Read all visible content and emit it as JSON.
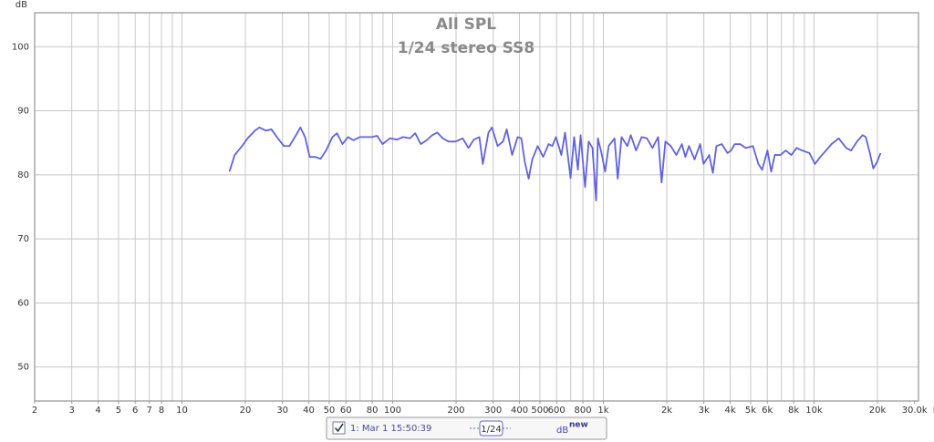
{
  "chart_data": {
    "type": "line",
    "title": "All SPL",
    "subtitle": "1/24 stereo SS8",
    "y_label": "dB",
    "x_unit": "Hz",
    "log_x": true,
    "grid": true,
    "xlim": [
      2,
      30000
    ],
    "ylim": [
      44.7,
      105.3
    ],
    "yticks": [
      50,
      60,
      70,
      80,
      90,
      100
    ],
    "xticks": [
      2,
      3,
      4,
      5,
      6,
      7,
      8,
      10,
      20,
      30,
      40,
      50,
      60,
      80,
      100,
      200,
      300,
      400,
      500,
      600,
      800,
      {
        "value": 1000,
        "label": "1k"
      },
      {
        "value": 2000,
        "label": "2k"
      },
      {
        "value": 3000,
        "label": "3k"
      },
      {
        "value": 4000,
        "label": "4k"
      },
      {
        "value": 5000,
        "label": "5k"
      },
      {
        "value": 6000,
        "label": "6k"
      },
      {
        "value": 8000,
        "label": "8k"
      },
      {
        "value": 10000,
        "label": "10k"
      },
      {
        "value": 20000,
        "label": "20k"
      },
      {
        "value": 30000,
        "label": "30.0k"
      }
    ],
    "xgrid": [
      2,
      3,
      4,
      5,
      6,
      7,
      8,
      9,
      10,
      20,
      30,
      40,
      50,
      60,
      70,
      80,
      90,
      100,
      200,
      300,
      400,
      500,
      600,
      700,
      800,
      900,
      1000,
      2000,
      3000,
      4000,
      5000,
      6000,
      7000,
      8000,
      9000,
      10000,
      20000
    ],
    "x": [
      16.8,
      17.8,
      19.3,
      20.5,
      22.2,
      23.3,
      25.0,
      26.6,
      28.5,
      30.5,
      32.4,
      34.8,
      36.5,
      38.4,
      40.4,
      42.9,
      45.5,
      48.3,
      51.8,
      54.4,
      57.8,
      61.4,
      65.1,
      69.9,
      74.9,
      79.5,
      84.4,
      89.6,
      97.1,
      105,
      112,
      121,
      128,
      136,
      145,
      154,
      163,
      173,
      184,
      199,
      215,
      229,
      243,
      258,
      268,
      285,
      296,
      315,
      334,
      348,
      369,
      392,
      408,
      424,
      442,
      460,
      488,
      518,
      550,
      572,
      596,
      632,
      658,
      699,
      727,
      757,
      780,
      819,
      852,
      888,
      924,
      942,
      980,
      1020,
      1060,
      1130,
      1170,
      1220,
      1300,
      1350,
      1430,
      1520,
      1610,
      1710,
      1820,
      1890,
      1970,
      2090,
      2220,
      2360,
      2450,
      2550,
      2710,
      2880,
      2990,
      3180,
      3310,
      3440,
      3650,
      3880,
      4040,
      4200,
      4460,
      4740,
      5130,
      5440,
      5670,
      6010,
      6260,
      6510,
      6920,
      7340,
      7800,
      8270,
      8780,
      9510,
      10100,
      10700,
      11400,
      12100,
      13100,
      14200,
      15000,
      16000,
      17000,
      17600,
      18400,
      19100,
      19900,
      20700
    ],
    "series": [
      {
        "name": "1: Mar 1 15:50:39",
        "color": "#6262dc",
        "values": [
          80.5,
          83.1,
          84.5,
          85.7,
          86.9,
          87.4,
          86.9,
          87.1,
          85.7,
          84.5,
          84.5,
          86.2,
          87.4,
          85.9,
          82.8,
          82.8,
          82.5,
          83.8,
          85.9,
          86.5,
          84.8,
          85.9,
          85.4,
          85.9,
          85.9,
          85.9,
          86.1,
          84.8,
          85.7,
          85.5,
          85.9,
          85.7,
          86.5,
          84.8,
          85.4,
          86.2,
          86.6,
          85.7,
          85.2,
          85.2,
          85.7,
          84.2,
          85.5,
          85.9,
          81.7,
          86.6,
          87.4,
          84.5,
          85.2,
          87.1,
          83.1,
          85.9,
          85.7,
          82.0,
          79.4,
          82.4,
          84.5,
          82.8,
          84.8,
          84.5,
          85.9,
          83.1,
          86.6,
          79.5,
          85.9,
          80.8,
          86.2,
          78.1,
          85.2,
          84.2,
          76.0,
          85.7,
          83.4,
          80.5,
          84.5,
          85.7,
          79.4,
          85.9,
          84.5,
          86.2,
          83.8,
          85.9,
          85.7,
          84.2,
          85.9,
          78.8,
          85.2,
          84.5,
          83.1,
          84.8,
          82.8,
          84.5,
          82.4,
          84.8,
          81.7,
          83.1,
          80.3,
          84.5,
          84.8,
          83.4,
          83.8,
          84.8,
          84.8,
          84.2,
          84.5,
          81.7,
          80.8,
          83.8,
          80.5,
          83.1,
          83.1,
          83.8,
          83.1,
          84.2,
          83.8,
          83.4,
          81.7,
          82.8,
          83.8,
          84.8,
          85.7,
          84.2,
          83.8,
          85.2,
          86.2,
          85.9,
          83.4,
          81.0,
          82.0,
          83.4
        ]
      }
    ],
    "legend_checked": true,
    "smoothing": "1/24",
    "legend_scale": "dB",
    "legend_scale_badge": "new"
  }
}
